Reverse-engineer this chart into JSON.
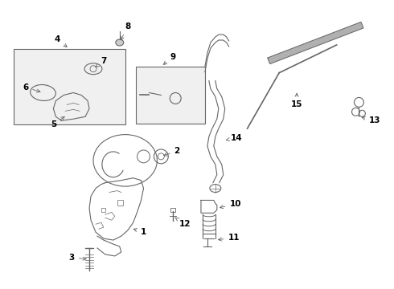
{
  "bg_color": "#ffffff",
  "line_color": "#666666",
  "label_color": "#000000",
  "label_fontsize": 7.5,
  "lw": 0.8
}
